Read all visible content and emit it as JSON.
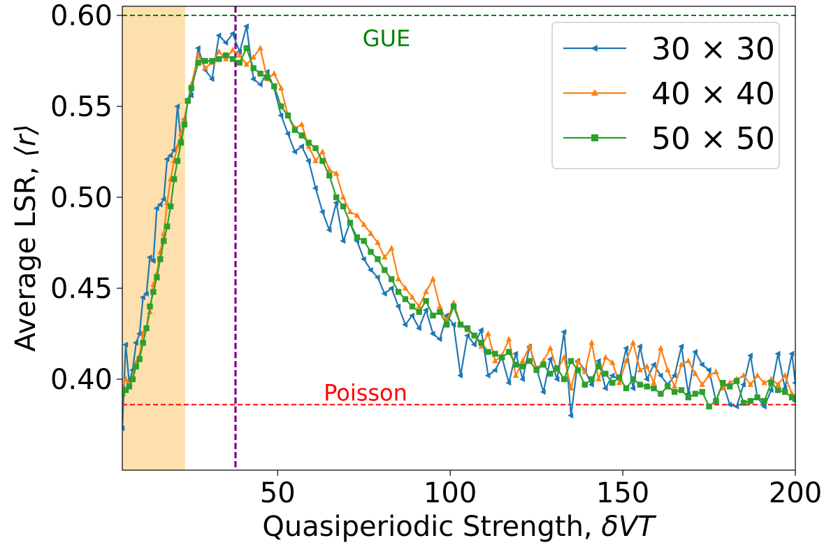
{
  "chart_data": {
    "type": "line",
    "title": "",
    "xlabel_text": "Quasiperiodic Strength, ",
    "xlabel_math": "δVT",
    "ylabel_text": "Average LSR, ",
    "ylabel_math": "⟨r⟩",
    "xlim": [
      5,
      200
    ],
    "ylim": [
      0.35,
      0.605
    ],
    "xticks": [
      50,
      100,
      150,
      200
    ],
    "yticks": [
      0.4,
      0.45,
      0.5,
      0.55,
      0.6
    ],
    "xtick_labels": [
      "50",
      "100",
      "150",
      "200"
    ],
    "ytick_labels": [
      "0.40",
      "0.45",
      "0.50",
      "0.55",
      "0.60"
    ],
    "grid": false,
    "legend_position": "top-right",
    "reference_lines": [
      {
        "label": "GUE",
        "y": 0.6,
        "color": "#008000"
      },
      {
        "label": "Poisson",
        "y": 0.386,
        "color": "#ff0000"
      }
    ],
    "vertical_line": {
      "x": 37.8,
      "color": "#800080"
    },
    "shaded_region": {
      "x": [
        5,
        23.2
      ],
      "color": "#fde0ae"
    },
    "series": [
      {
        "name": "30 × 30",
        "color": "#1f77b4",
        "marker": "triangle-left",
        "x": [
          5,
          6,
          7,
          8,
          9,
          10,
          11,
          12,
          13,
          14,
          15,
          16,
          17,
          18,
          19,
          20,
          21,
          22,
          23,
          24,
          25,
          27,
          29,
          31,
          33,
          35,
          37,
          39,
          41,
          43,
          45,
          47,
          49,
          51,
          53,
          55,
          57,
          59,
          61,
          63,
          65,
          67,
          69,
          71,
          73,
          75,
          77,
          79,
          81,
          83,
          85,
          87,
          89,
          91,
          93,
          95,
          97,
          99,
          101,
          103,
          105,
          107,
          109,
          111,
          113,
          115,
          117,
          119,
          121,
          123,
          125,
          127,
          129,
          131,
          133,
          135,
          137,
          139,
          141,
          143,
          145,
          147,
          149,
          151,
          153,
          155,
          157,
          159,
          161,
          163,
          165,
          167,
          169,
          171,
          173,
          175,
          177,
          179,
          181,
          183,
          185,
          187,
          189,
          191,
          193,
          195,
          197,
          199,
          200
        ],
        "y": [
          0.373,
          0.419,
          0.398,
          0.405,
          0.42,
          0.425,
          0.445,
          0.447,
          0.467,
          0.465,
          0.494,
          0.496,
          0.499,
          0.521,
          0.523,
          0.526,
          0.55,
          0.531,
          0.543,
          0.553,
          0.556,
          0.582,
          0.57,
          0.565,
          0.589,
          0.585,
          0.59,
          0.58,
          0.594,
          0.565,
          0.562,
          0.569,
          0.56,
          0.545,
          0.535,
          0.525,
          0.528,
          0.52,
          0.505,
          0.492,
          0.482,
          0.497,
          0.476,
          0.486,
          0.476,
          0.466,
          0.46,
          0.456,
          0.447,
          0.45,
          0.44,
          0.43,
          0.435,
          0.428,
          0.438,
          0.425,
          0.422,
          0.435,
          0.43,
          0.402,
          0.424,
          0.419,
          0.427,
          0.402,
          0.405,
          0.412,
          0.398,
          0.414,
          0.4,
          0.418,
          0.406,
          0.393,
          0.411,
          0.4,
          0.426,
          0.38,
          0.41,
          0.405,
          0.397,
          0.41,
          0.395,
          0.402,
          0.4,
          0.417,
          0.395,
          0.418,
          0.4,
          0.408,
          0.402,
          0.397,
          0.402,
          0.418,
          0.392,
          0.415,
          0.408,
          0.405,
          0.388,
          0.398,
          0.386,
          0.385,
          0.397,
          0.413,
          0.39,
          0.385,
          0.394,
          0.414,
          0.395,
          0.414,
          0.398
        ]
      },
      {
        "name": "40 × 40",
        "color": "#ff7f0e",
        "marker": "triangle-up",
        "x": [
          5,
          6,
          7,
          8,
          9,
          10,
          11,
          12,
          13,
          14,
          15,
          16,
          17,
          18,
          19,
          20,
          21,
          22,
          23,
          24,
          25,
          27,
          29,
          31,
          33,
          35,
          37,
          39,
          41,
          43,
          45,
          47,
          49,
          51,
          53,
          55,
          57,
          59,
          61,
          63,
          65,
          67,
          69,
          71,
          73,
          75,
          77,
          79,
          81,
          83,
          85,
          87,
          89,
          91,
          93,
          95,
          97,
          99,
          101,
          103,
          105,
          107,
          109,
          111,
          113,
          115,
          117,
          119,
          121,
          123,
          125,
          127,
          129,
          131,
          133,
          135,
          137,
          139,
          141,
          143,
          145,
          147,
          149,
          151,
          153,
          155,
          157,
          159,
          161,
          163,
          165,
          167,
          169,
          171,
          173,
          175,
          177,
          179,
          181,
          183,
          185,
          187,
          189,
          191,
          193,
          195,
          197,
          199,
          200
        ],
        "y": [
          0.395,
          0.4,
          0.397,
          0.401,
          0.409,
          0.413,
          0.425,
          0.428,
          0.437,
          0.452,
          0.458,
          0.47,
          0.48,
          0.497,
          0.51,
          0.52,
          0.528,
          0.535,
          0.543,
          0.553,
          0.562,
          0.578,
          0.571,
          0.574,
          0.58,
          0.576,
          0.581,
          0.578,
          0.573,
          0.577,
          0.582,
          0.565,
          0.568,
          0.56,
          0.545,
          0.538,
          0.54,
          0.528,
          0.52,
          0.525,
          0.515,
          0.513,
          0.5,
          0.492,
          0.49,
          0.485,
          0.48,
          0.475,
          0.467,
          0.472,
          0.455,
          0.45,
          0.445,
          0.44,
          0.448,
          0.455,
          0.44,
          0.432,
          0.442,
          0.43,
          0.427,
          0.424,
          0.418,
          0.425,
          0.41,
          0.413,
          0.422,
          0.402,
          0.41,
          0.418,
          0.405,
          0.41,
          0.417,
          0.405,
          0.412,
          0.395,
          0.41,
          0.404,
          0.42,
          0.4,
          0.412,
          0.409,
          0.398,
          0.41,
          0.42,
          0.405,
          0.407,
          0.398,
          0.417,
          0.405,
          0.396,
          0.408,
          0.41,
          0.403,
          0.397,
          0.402,
          0.404,
          0.395,
          0.398,
          0.4,
          0.402,
          0.397,
          0.402,
          0.398,
          0.4,
          0.397,
          0.402,
          0.392,
          0.389
        ]
      },
      {
        "name": "50 × 50",
        "color": "#2ca02c",
        "marker": "square",
        "x": [
          5,
          6,
          7,
          8,
          9,
          10,
          11,
          12,
          13,
          14,
          15,
          16,
          17,
          18,
          19,
          20,
          21,
          22,
          23,
          24,
          25,
          27,
          29,
          31,
          33,
          35,
          37,
          39,
          41,
          43,
          45,
          47,
          49,
          51,
          53,
          55,
          57,
          59,
          61,
          63,
          65,
          67,
          69,
          71,
          73,
          75,
          77,
          79,
          81,
          83,
          85,
          87,
          89,
          91,
          93,
          95,
          97,
          99,
          101,
          103,
          105,
          107,
          109,
          111,
          113,
          115,
          117,
          119,
          121,
          123,
          125,
          127,
          129,
          131,
          133,
          135,
          137,
          139,
          141,
          143,
          145,
          147,
          149,
          151,
          153,
          155,
          157,
          159,
          161,
          163,
          165,
          167,
          169,
          171,
          173,
          175,
          177,
          179,
          181,
          183,
          185,
          187,
          189,
          191,
          193,
          195,
          197,
          199,
          200
        ],
        "y": [
          0.392,
          0.394,
          0.396,
          0.4,
          0.407,
          0.411,
          0.42,
          0.428,
          0.44,
          0.448,
          0.456,
          0.466,
          0.476,
          0.484,
          0.495,
          0.51,
          0.52,
          0.53,
          0.54,
          0.553,
          0.56,
          0.574,
          0.575,
          0.575,
          0.576,
          0.578,
          0.576,
          0.574,
          0.582,
          0.571,
          0.568,
          0.566,
          0.561,
          0.55,
          0.545,
          0.537,
          0.534,
          0.53,
          0.527,
          0.52,
          0.512,
          0.5,
          0.495,
          0.486,
          0.478,
          0.476,
          0.47,
          0.466,
          0.46,
          0.455,
          0.448,
          0.444,
          0.44,
          0.437,
          0.443,
          0.435,
          0.437,
          0.43,
          0.44,
          0.43,
          0.428,
          0.424,
          0.42,
          0.415,
          0.414,
          0.412,
          0.415,
          0.408,
          0.407,
          0.41,
          0.405,
          0.408,
          0.403,
          0.406,
          0.4,
          0.41,
          0.405,
          0.397,
          0.4,
          0.407,
          0.403,
          0.398,
          0.401,
          0.395,
          0.4,
          0.397,
          0.396,
          0.395,
          0.392,
          0.396,
          0.393,
          0.394,
          0.39,
          0.392,
          0.393,
          0.385,
          0.388,
          0.398,
          0.396,
          0.399,
          0.387,
          0.388,
          0.39,
          0.388,
          0.398,
          0.394,
          0.393,
          0.39,
          0.389
        ]
      }
    ]
  }
}
